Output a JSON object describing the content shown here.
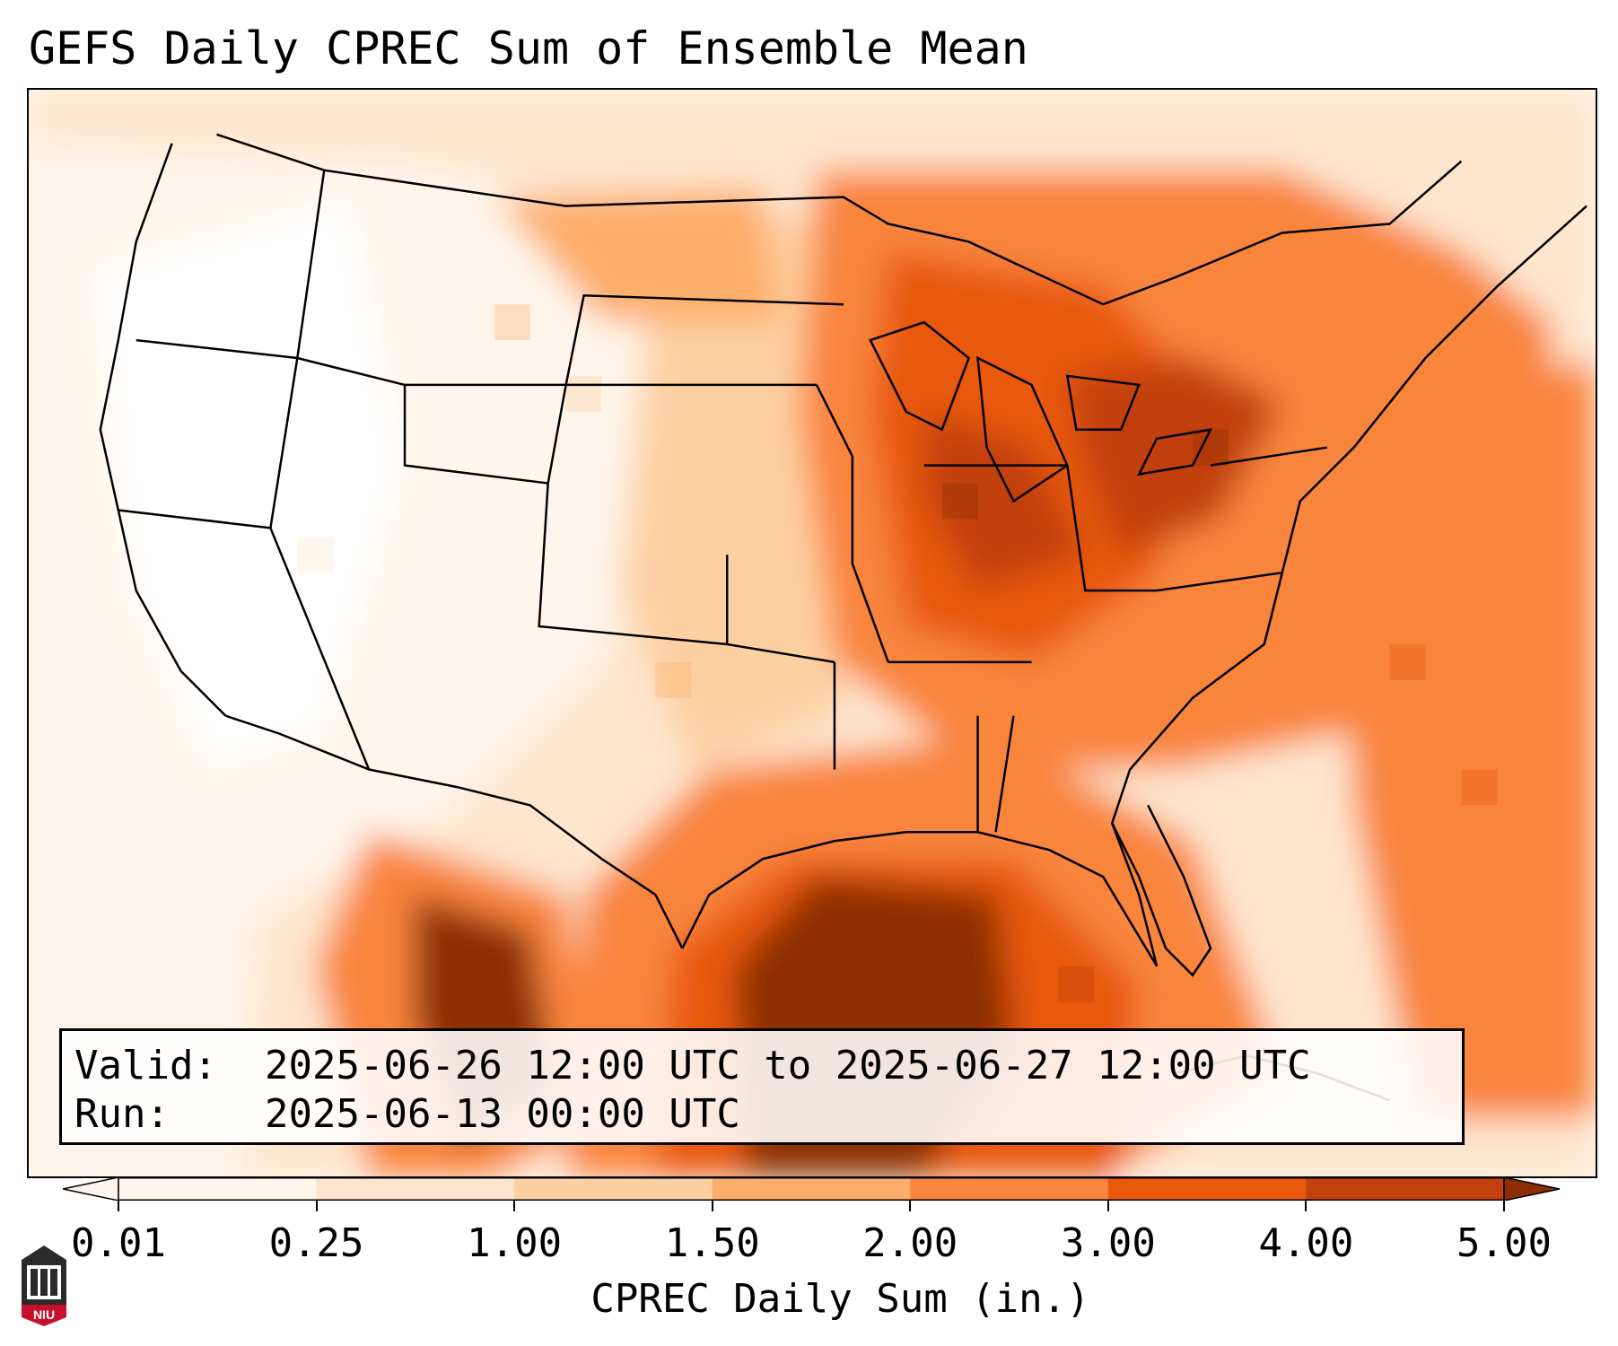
{
  "title": "GEFS Daily CPREC Sum of Ensemble Mean",
  "info": {
    "valid_label": "Valid:",
    "valid_value": "2025-06-26 12:00 UTC to 2025-06-27 12:00 UTC",
    "run_label": "Run:",
    "run_value": "2025-06-13 00:00 UTC"
  },
  "colorbar": {
    "label": "CPREC Daily Sum (in.)",
    "ticks": [
      "0.01",
      "0.25",
      "1.00",
      "1.50",
      "2.00",
      "3.00",
      "4.00",
      "5.00"
    ],
    "colors": [
      "#fff5eb",
      "#fee6ce",
      "#fdd0a2",
      "#fdae6b",
      "#f9853e",
      "#e8590c",
      "#c2410c",
      "#8c2d04"
    ],
    "extend": "both"
  },
  "logo": {
    "text": "NIU",
    "color": "#c8102e"
  }
}
